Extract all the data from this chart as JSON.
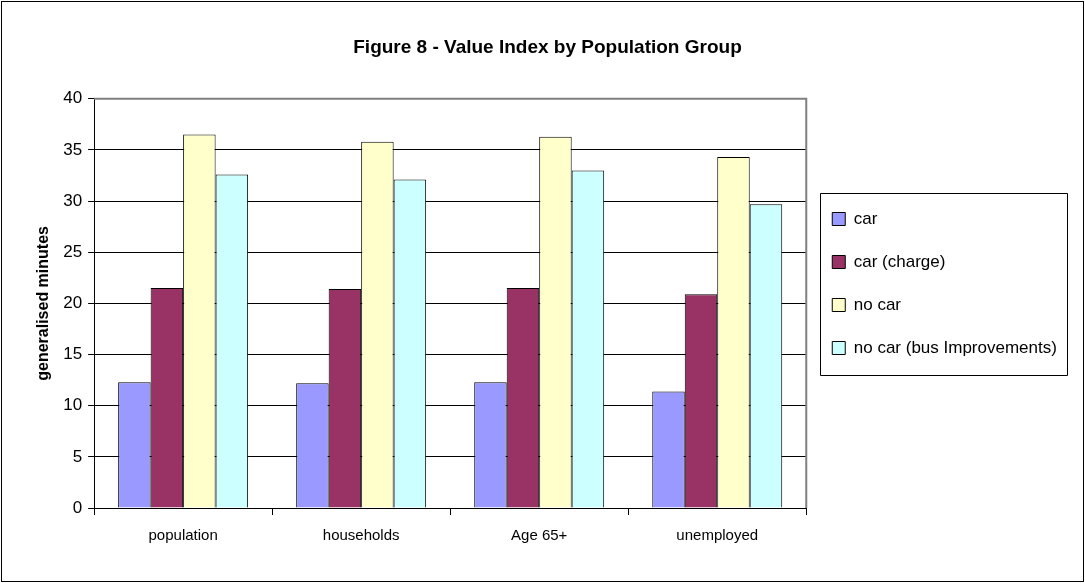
{
  "chart_data": {
    "type": "bar",
    "title": "Figure 8 - Value Index by Population Group",
    "ylabel": "generalised minutes",
    "categories": [
      "population",
      "households",
      "Age 65+",
      "unemployed"
    ],
    "series": [
      {
        "name": "car",
        "color": "#9999ff",
        "values": [
          12.3,
          12.2,
          12.3,
          11.4
        ]
      },
      {
        "name": "car (charge)",
        "color": "#993366",
        "values": [
          21.5,
          21.4,
          21.5,
          20.9
        ]
      },
      {
        "name": "no car",
        "color": "#ffffcc",
        "values": [
          36.5,
          35.8,
          36.3,
          34.3
        ]
      },
      {
        "name": "no car (bus Improvements)",
        "color": "#ccffff",
        "values": [
          32.6,
          32.1,
          33.0,
          29.7
        ]
      }
    ],
    "ylim": [
      0,
      40
    ],
    "yticks": [
      0,
      5,
      10,
      15,
      20,
      25,
      30,
      35,
      40
    ],
    "grid": "y",
    "legend": "right"
  }
}
